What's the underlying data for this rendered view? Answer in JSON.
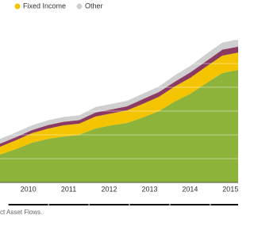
{
  "chart_data": {
    "type": "stacked-area",
    "x": [
      2009.8,
      2010.19,
      2010.59,
      2010.98,
      2011.37,
      2011.76,
      2012.16,
      2012.55,
      2012.94,
      2013.33,
      2013.73,
      2014.12,
      2014.51,
      2014.9,
      2015.3,
      2015.69
    ],
    "xlim": [
      2009.8,
      2015.69
    ],
    "xticks": [
      {
        "value": 2010.5,
        "label": "2010"
      },
      {
        "value": 2011.5,
        "label": "2011"
      },
      {
        "value": 2012.5,
        "label": "2012"
      },
      {
        "value": 2013.5,
        "label": "2013"
      },
      {
        "value": 2014.5,
        "label": "2014"
      },
      {
        "value": 2015.5,
        "label": "2015"
      }
    ],
    "ylim": [
      0,
      7.67
    ],
    "yticks": [
      0,
      1,
      2,
      3,
      4,
      5,
      6,
      7
    ],
    "grid": true,
    "series": [
      {
        "color": "#8db33a",
        "values": [
          1.17,
          1.4,
          1.67,
          1.83,
          1.93,
          2.0,
          2.27,
          2.4,
          2.5,
          2.73,
          3.0,
          3.4,
          3.73,
          4.17,
          4.6,
          4.73
        ]
      },
      {
        "name": "Fixed Income",
        "color": "#f5c400",
        "values": [
          0.33,
          0.37,
          0.4,
          0.43,
          0.47,
          0.47,
          0.5,
          0.5,
          0.53,
          0.57,
          0.6,
          0.63,
          0.67,
          0.7,
          0.73,
          0.73
        ]
      },
      {
        "color": "#8b3a62",
        "values": [
          0.13,
          0.13,
          0.13,
          0.15,
          0.15,
          0.15,
          0.17,
          0.17,
          0.17,
          0.2,
          0.2,
          0.2,
          0.23,
          0.23,
          0.25,
          0.25
        ]
      },
      {
        "name": "Other",
        "color": "#cfcfcf",
        "values": [
          0.2,
          0.2,
          0.2,
          0.2,
          0.2,
          0.2,
          0.23,
          0.23,
          0.23,
          0.23,
          0.23,
          0.27,
          0.27,
          0.3,
          0.3,
          0.3
        ]
      }
    ],
    "source": "ct Asset Flows."
  }
}
